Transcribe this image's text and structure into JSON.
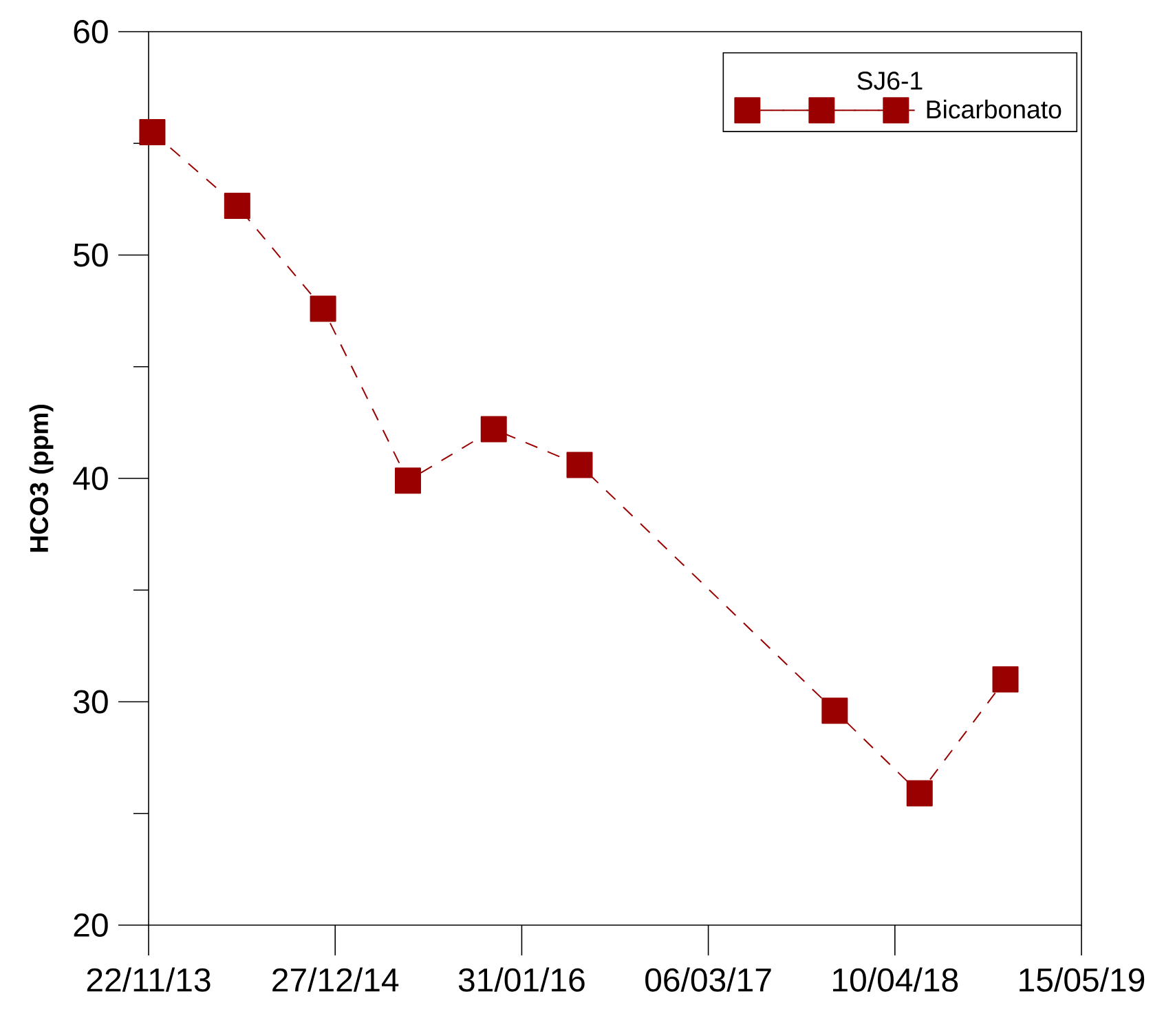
{
  "chart_data": {
    "type": "line",
    "ylabel": "HCO3 (ppm)",
    "legend_title": "SJ6-1",
    "x": [
      "2013-11-30",
      "2014-05-31",
      "2014-12-01",
      "2015-06-01",
      "2015-12-02",
      "2016-06-03",
      "2017-12-02",
      "2018-06-02",
      "2018-12-03"
    ],
    "series": [
      {
        "name": "Bicarbonato",
        "color": "#990000",
        "values": [
          55.5,
          52.2,
          47.6,
          39.9,
          42.2,
          40.6,
          29.6,
          25.9,
          31.0
        ]
      }
    ],
    "xlim": [
      "2013-11-22",
      "2019-05-15"
    ],
    "xticks": [
      {
        "value": "2013-11-22",
        "label": "22/11/13"
      },
      {
        "value": "2014-12-27",
        "label": "27/12/14"
      },
      {
        "value": "2016-01-31",
        "label": "31/01/16"
      },
      {
        "value": "2017-03-06",
        "label": "06/03/17"
      },
      {
        "value": "2018-04-10",
        "label": "10/04/18"
      },
      {
        "value": "2019-05-15",
        "label": "15/05/19"
      }
    ],
    "ylim": [
      20,
      60
    ],
    "yticks": [
      20,
      {
        "value": 25,
        "label": null
      },
      30,
      {
        "value": 35,
        "label": null
      },
      40,
      {
        "value": 45,
        "label": null
      },
      50,
      {
        "value": 55,
        "label": null
      },
      60
    ],
    "marker": "square",
    "line_style": "dashed",
    "legend": "top right"
  }
}
